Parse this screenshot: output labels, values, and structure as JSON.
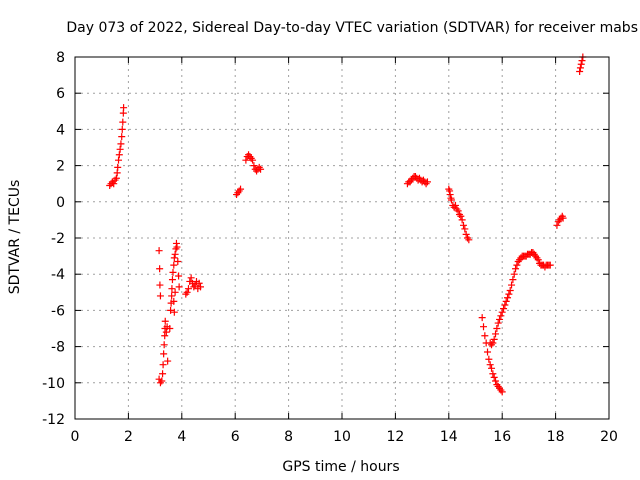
{
  "chart_data": {
    "type": "scatter",
    "title": "Day 073 of 2022, Sidereal Day-to-day VTEC variation (SDTVAR) for receiver mabs",
    "xlabel": "GPS time / hours",
    "ylabel": "SDTVAR / TECUs",
    "xlim": [
      0,
      20
    ],
    "ylim": [
      -12,
      8
    ],
    "xticks": [
      0,
      2,
      4,
      6,
      8,
      10,
      12,
      14,
      16,
      18,
      20
    ],
    "yticks": [
      -12,
      -10,
      -8,
      -6,
      -4,
      -2,
      0,
      2,
      4,
      6,
      8
    ],
    "grid": true,
    "marker": "+",
    "series_color": "#ff0000",
    "segments": [
      [
        [
          1.3,
          0.9
        ],
        [
          1.35,
          1.0
        ],
        [
          1.4,
          1.1
        ],
        [
          1.45,
          1.0
        ],
        [
          1.5,
          1.2
        ],
        [
          1.55,
          1.3
        ],
        [
          1.58,
          1.6
        ],
        [
          1.6,
          1.9
        ],
        [
          1.63,
          2.3
        ],
        [
          1.66,
          2.6
        ],
        [
          1.69,
          2.9
        ],
        [
          1.72,
          3.2
        ],
        [
          1.75,
          3.6
        ],
        [
          1.77,
          4.0
        ],
        [
          1.79,
          4.4
        ],
        [
          1.81,
          4.9
        ],
        [
          1.82,
          5.2
        ]
      ],
      [
        [
          3.15,
          -2.7
        ],
        [
          3.17,
          -3.7
        ],
        [
          3.18,
          -4.6
        ],
        [
          3.2,
          -5.2
        ],
        [
          3.15,
          -9.8
        ],
        [
          3.2,
          -10.0
        ],
        [
          3.25,
          -9.9
        ],
        [
          3.28,
          -9.5
        ],
        [
          3.3,
          -9.0
        ],
        [
          3.32,
          -8.4
        ],
        [
          3.34,
          -7.9
        ],
        [
          3.36,
          -7.4
        ],
        [
          3.37,
          -7.0
        ],
        [
          3.38,
          -6.6
        ],
        [
          3.42,
          -7.2
        ],
        [
          3.45,
          -6.9
        ],
        [
          3.47,
          -8.8
        ],
        [
          3.55,
          -7.0
        ],
        [
          3.58,
          -6.0
        ],
        [
          3.6,
          -5.6
        ],
        [
          3.62,
          -5.2
        ],
        [
          3.63,
          -4.8
        ],
        [
          3.65,
          -4.3
        ],
        [
          3.67,
          -3.9
        ],
        [
          3.7,
          -3.5
        ],
        [
          3.72,
          -3.1
        ],
        [
          3.75,
          -2.9
        ],
        [
          3.78,
          -2.6
        ],
        [
          3.8,
          -2.3
        ],
        [
          3.82,
          -2.5
        ],
        [
          3.7,
          -5.5
        ],
        [
          3.72,
          -6.1
        ],
        [
          3.75,
          -5.0
        ],
        [
          3.85,
          -3.3
        ],
        [
          3.88,
          -4.1
        ],
        [
          3.9,
          -4.7
        ]
      ],
      [
        [
          4.15,
          -5.1
        ],
        [
          4.2,
          -5.0
        ],
        [
          4.25,
          -4.8
        ],
        [
          4.3,
          -4.4
        ],
        [
          4.35,
          -4.2
        ],
        [
          4.4,
          -4.5
        ],
        [
          4.45,
          -4.7
        ],
        [
          4.5,
          -4.6
        ],
        [
          4.55,
          -4.4
        ],
        [
          4.6,
          -4.8
        ],
        [
          4.65,
          -4.5
        ],
        [
          4.7,
          -4.7
        ]
      ],
      [
        [
          6.05,
          0.4
        ],
        [
          6.1,
          0.5
        ],
        [
          6.15,
          0.6
        ],
        [
          6.2,
          0.7
        ],
        [
          6.4,
          2.3
        ],
        [
          6.45,
          2.5
        ],
        [
          6.5,
          2.6
        ],
        [
          6.55,
          2.5
        ],
        [
          6.6,
          2.4
        ],
        [
          6.65,
          2.3
        ],
        [
          6.7,
          2.0
        ],
        [
          6.75,
          1.8
        ],
        [
          6.8,
          1.7
        ],
        [
          6.85,
          1.8
        ],
        [
          6.9,
          1.9
        ],
        [
          6.95,
          1.8
        ]
      ],
      [
        [
          12.45,
          1.0
        ],
        [
          12.5,
          1.1
        ],
        [
          12.55,
          1.1
        ],
        [
          12.6,
          1.2
        ],
        [
          12.65,
          1.3
        ],
        [
          12.7,
          1.4
        ],
        [
          12.75,
          1.4
        ],
        [
          12.8,
          1.3
        ],
        [
          12.85,
          1.2
        ],
        [
          12.9,
          1.3
        ],
        [
          12.95,
          1.2
        ],
        [
          13.0,
          1.1
        ],
        [
          13.05,
          1.2
        ],
        [
          13.1,
          1.1
        ],
        [
          13.15,
          1.0
        ],
        [
          13.2,
          1.1
        ]
      ],
      [
        [
          14.0,
          0.7
        ],
        [
          14.03,
          0.6
        ],
        [
          14.05,
          0.4
        ],
        [
          14.08,
          0.2
        ],
        [
          14.1,
          0.1
        ],
        [
          14.15,
          -0.2
        ],
        [
          14.2,
          -0.3
        ],
        [
          14.25,
          -0.2
        ],
        [
          14.3,
          -0.4
        ],
        [
          14.35,
          -0.5
        ],
        [
          14.4,
          -0.7
        ],
        [
          14.45,
          -0.8
        ],
        [
          14.5,
          -1.0
        ],
        [
          14.55,
          -1.3
        ],
        [
          14.6,
          -1.5
        ],
        [
          14.65,
          -1.8
        ],
        [
          14.7,
          -2.0
        ],
        [
          14.75,
          -2.1
        ]
      ],
      [
        [
          15.25,
          -6.4
        ],
        [
          15.3,
          -6.9
        ],
        [
          15.35,
          -7.4
        ],
        [
          15.4,
          -7.8
        ],
        [
          15.45,
          -8.3
        ],
        [
          15.5,
          -8.7
        ],
        [
          15.55,
          -9.0
        ],
        [
          15.6,
          -9.2
        ],
        [
          15.65,
          -9.5
        ],
        [
          15.7,
          -9.7
        ],
        [
          15.75,
          -9.9
        ],
        [
          15.8,
          -10.1
        ],
        [
          15.85,
          -10.2
        ],
        [
          15.9,
          -10.3
        ],
        [
          15.95,
          -10.4
        ],
        [
          16.0,
          -10.5
        ],
        [
          15.55,
          -7.8
        ],
        [
          15.6,
          -7.9
        ],
        [
          15.65,
          -7.8
        ],
        [
          15.7,
          -7.6
        ],
        [
          15.75,
          -7.3
        ],
        [
          15.8,
          -7.0
        ],
        [
          15.85,
          -6.7
        ],
        [
          15.9,
          -6.5
        ],
        [
          15.95,
          -6.3
        ],
        [
          16.0,
          -6.1
        ],
        [
          16.05,
          -5.9
        ],
        [
          16.1,
          -5.7
        ],
        [
          16.15,
          -5.5
        ],
        [
          16.2,
          -5.3
        ],
        [
          16.25,
          -5.1
        ],
        [
          16.3,
          -4.9
        ],
        [
          16.35,
          -4.6
        ],
        [
          16.4,
          -4.3
        ],
        [
          16.45,
          -4.0
        ],
        [
          16.5,
          -3.7
        ],
        [
          16.55,
          -3.5
        ],
        [
          16.6,
          -3.3
        ],
        [
          16.65,
          -3.2
        ],
        [
          16.7,
          -3.1
        ],
        [
          16.75,
          -3.0
        ],
        [
          16.8,
          -3.0
        ],
        [
          16.85,
          -3.0
        ],
        [
          16.9,
          -3.0
        ],
        [
          16.95,
          -2.9
        ],
        [
          17.0,
          -2.9
        ],
        [
          17.05,
          -2.9
        ],
        [
          17.1,
          -2.8
        ],
        [
          17.15,
          -2.8
        ],
        [
          17.2,
          -2.9
        ],
        [
          17.25,
          -3.0
        ],
        [
          17.3,
          -3.1
        ],
        [
          17.35,
          -3.2
        ],
        [
          17.4,
          -3.4
        ],
        [
          17.45,
          -3.5
        ],
        [
          17.5,
          -3.5
        ],
        [
          17.55,
          -3.5
        ],
        [
          17.6,
          -3.6
        ],
        [
          17.65,
          -3.5
        ],
        [
          17.7,
          -3.5
        ],
        [
          17.75,
          -3.5
        ],
        [
          17.8,
          -3.5
        ]
      ],
      [
        [
          18.05,
          -1.3
        ],
        [
          18.1,
          -1.1
        ],
        [
          18.15,
          -1.0
        ],
        [
          18.2,
          -0.9
        ],
        [
          18.25,
          -0.8
        ],
        [
          18.28,
          -0.9
        ]
      ],
      [
        [
          18.9,
          7.2
        ],
        [
          18.93,
          7.4
        ],
        [
          18.96,
          7.6
        ],
        [
          18.99,
          7.8
        ],
        [
          19.02,
          8.0
        ]
      ]
    ]
  }
}
